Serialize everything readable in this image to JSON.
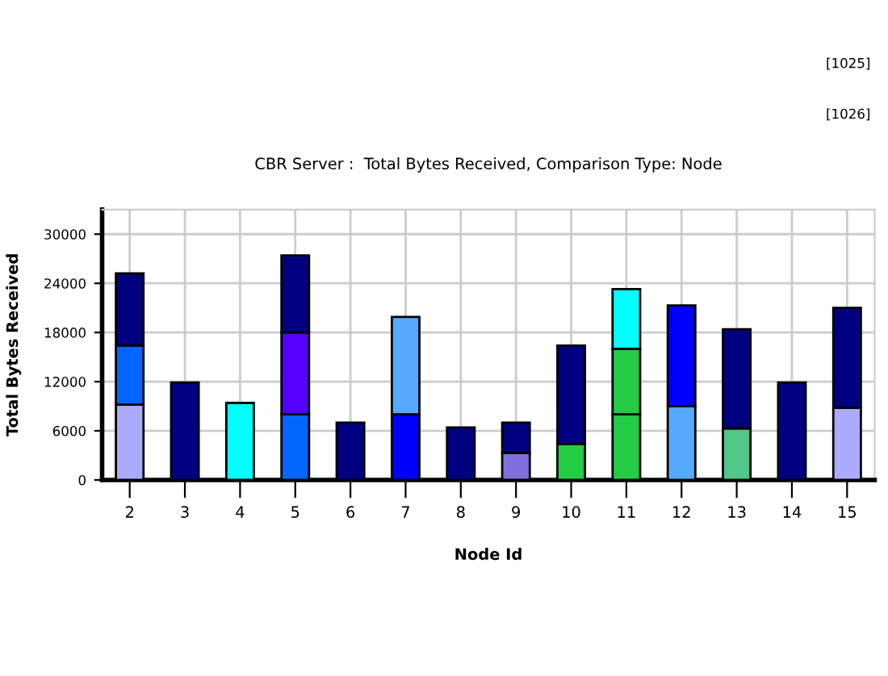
{
  "chart_data": {
    "type": "bar",
    "stacked": true,
    "title": "CBR Server :  Total Bytes Received, Comparison Type: Node",
    "xlabel": "Node Id",
    "ylabel": "Total Bytes Received",
    "categories": [
      "2",
      "3",
      "4",
      "5",
      "6",
      "7",
      "8",
      "9",
      "10",
      "11",
      "12",
      "13",
      "14",
      "15"
    ],
    "series": [
      {
        "values": [
          9200,
          11900,
          9400,
          8000,
          7000,
          8000,
          6400,
          3300,
          4400,
          8000,
          9000,
          6300,
          11900,
          8800
        ],
        "colors": [
          "#aaaaff",
          "#000080",
          "#00ffff",
          "#0066ff",
          "#000080",
          "#0000ff",
          "#000080",
          "#8070dd",
          "#22cc44",
          "#22cc44",
          "#55aaff",
          "#50c888",
          "#000080",
          "#aaaaff"
        ]
      },
      {
        "values": [
          7200,
          null,
          null,
          10000,
          null,
          11900,
          null,
          3700,
          12000,
          8000,
          12300,
          12100,
          null,
          12200
        ],
        "colors": [
          "#0066ff",
          null,
          null,
          "#5500ff",
          null,
          "#55aaff",
          null,
          "#000080",
          "#000080",
          "#22cc44",
          "#0000ff",
          "#000080",
          null,
          "#000080"
        ]
      },
      {
        "values": [
          8800,
          null,
          null,
          9400,
          null,
          null,
          null,
          null,
          null,
          7300,
          null,
          null,
          null,
          null
        ],
        "colors": [
          "#000080",
          null,
          null,
          "#000080",
          null,
          null,
          null,
          null,
          null,
          "#00ffff",
          null,
          null,
          null,
          null
        ]
      }
    ],
    "ylim": [
      0,
      33000
    ],
    "yticks": [
      0,
      6000,
      12000,
      18000,
      24000,
      30000
    ],
    "grid": true,
    "annotations": [
      "[1025]",
      "[1026]"
    ]
  }
}
